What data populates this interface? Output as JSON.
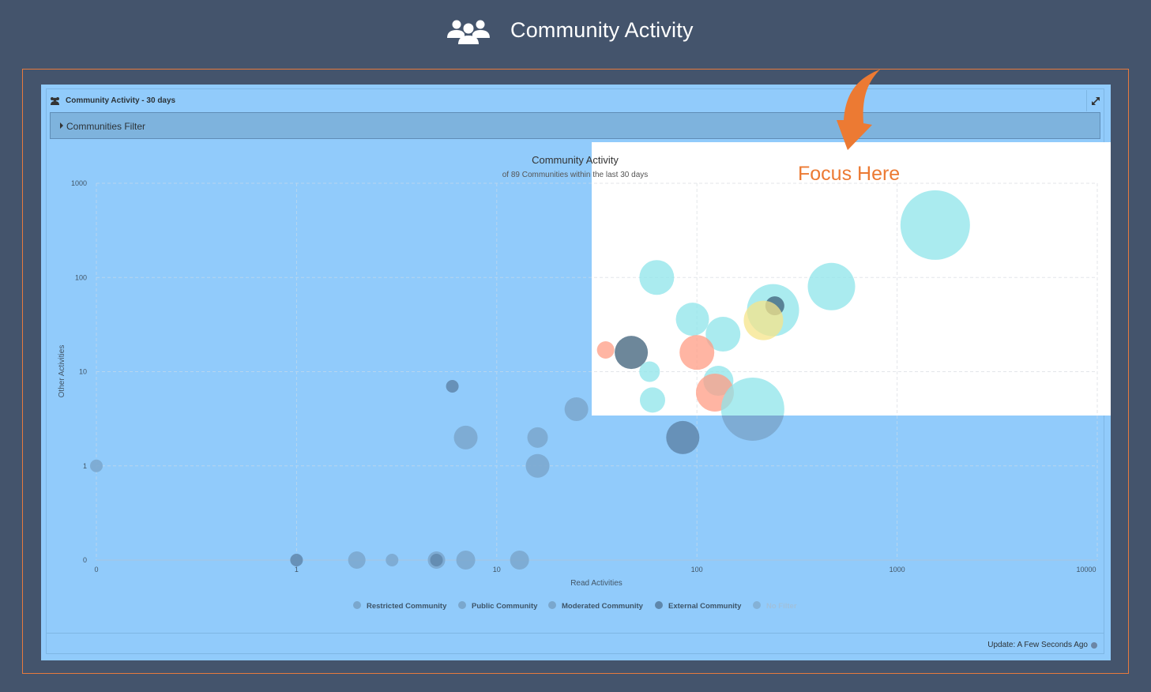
{
  "header": {
    "title": "Community Activity",
    "icon": "users-group-icon"
  },
  "widget": {
    "title": "Community Activity - 30 days",
    "filter_label": "Communities Filter",
    "update_text": "Update: A Few Seconds Ago"
  },
  "annotation": {
    "text": "Focus Here",
    "color": "#ec7a33"
  },
  "chart_data": {
    "type": "scatter",
    "title": "Community Activity",
    "subtitle": "of 89 Communities within the last 30 days",
    "xlabel": "Read Activities",
    "ylabel": "Other Activities",
    "x_scale": "log",
    "y_scale": "log",
    "x_ticks": [
      "0",
      "1",
      "10",
      "100",
      "1000",
      "10000"
    ],
    "y_ticks": [
      "0",
      "1",
      "10",
      "100",
      "1000"
    ],
    "grid": true,
    "legend_position": "bottom",
    "legend": [
      {
        "name": "Restricted Community",
        "color": "#ff9c84"
      },
      {
        "name": "Public Community",
        "color": "#8ee4ea"
      },
      {
        "name": "Moderated Community",
        "color": "#f6e48a"
      },
      {
        "name": "External Community",
        "color": "#3c5f78"
      },
      {
        "name": "No Filter",
        "color": "#9fbad0"
      }
    ],
    "points": [
      {
        "x": 1550,
        "y": 360,
        "size": 44,
        "type": "Public Community"
      },
      {
        "x": 470,
        "y": 80,
        "size": 30,
        "type": "Public Community"
      },
      {
        "x": 240,
        "y": 45,
        "size": 33,
        "type": "Public Community"
      },
      {
        "x": 245,
        "y": 50,
        "size": 12,
        "type": "External Community"
      },
      {
        "x": 215,
        "y": 35,
        "size": 25,
        "type": "Moderated Community"
      },
      {
        "x": 63,
        "y": 100,
        "size": 22,
        "type": "Public Community"
      },
      {
        "x": 95,
        "y": 36,
        "size": 21,
        "type": "Public Community"
      },
      {
        "x": 135,
        "y": 25,
        "size": 22,
        "type": "Public Community"
      },
      {
        "x": 100,
        "y": 16,
        "size": 22,
        "type": "Restricted Community"
      },
      {
        "x": 35,
        "y": 17,
        "size": 11,
        "type": "Restricted Community"
      },
      {
        "x": 47,
        "y": 16,
        "size": 21,
        "type": "External Community"
      },
      {
        "x": 58,
        "y": 10,
        "size": 13,
        "type": "Public Community"
      },
      {
        "x": 128,
        "y": 8,
        "size": 19,
        "type": "Public Community"
      },
      {
        "x": 123,
        "y": 6,
        "size": 24,
        "type": "Restricted Community"
      },
      {
        "x": 190,
        "y": 4,
        "size": 40,
        "type": "Public Community"
      },
      {
        "x": 60,
        "y": 5,
        "size": 16,
        "type": "Public Community"
      },
      {
        "x": 6,
        "y": 7,
        "size": 8,
        "type": "External Community"
      },
      {
        "x": 25,
        "y": 4,
        "size": 15,
        "type": "Public Community"
      },
      {
        "x": 7,
        "y": 2,
        "size": 15,
        "type": "Public Community"
      },
      {
        "x": 16,
        "y": 2,
        "size": 13,
        "type": "Public Community"
      },
      {
        "x": 85,
        "y": 2,
        "size": 21,
        "type": "External Community"
      },
      {
        "x": 16,
        "y": 1,
        "size": 15,
        "type": "Public Community"
      },
      {
        "x": 0,
        "y": 1,
        "size": 8,
        "type": "Public Community"
      },
      {
        "x": 1,
        "y": 0,
        "size": 8,
        "type": "External Community"
      },
      {
        "x": 2,
        "y": 0,
        "size": 11,
        "type": "Public Community"
      },
      {
        "x": 3,
        "y": 0,
        "size": 8,
        "type": "Public Community"
      },
      {
        "x": 5,
        "y": 0,
        "size": 11,
        "type": "Public Community"
      },
      {
        "x": 5,
        "y": 0,
        "size": 8,
        "type": "External Community"
      },
      {
        "x": 7,
        "y": 0,
        "size": 12,
        "type": "Public Community"
      },
      {
        "x": 13,
        "y": 0,
        "size": 12,
        "type": "Public Community"
      }
    ]
  }
}
